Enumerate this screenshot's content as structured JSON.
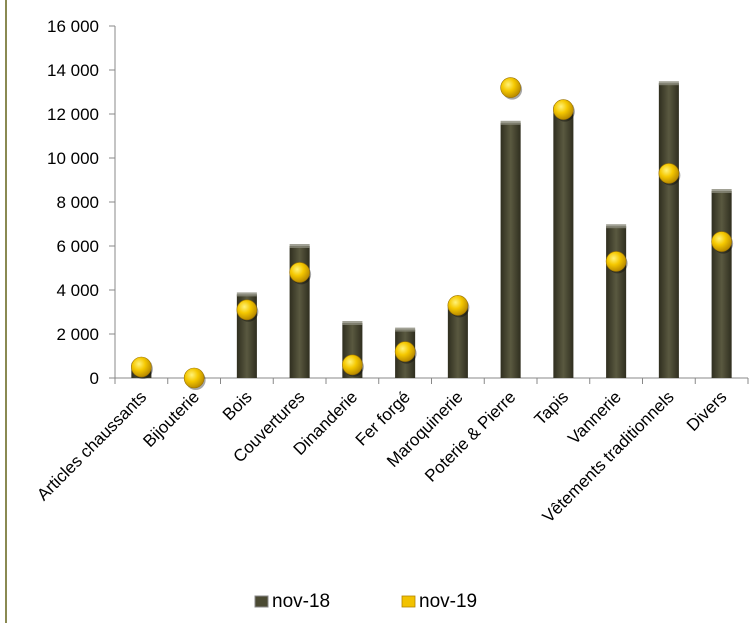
{
  "chart_data": {
    "type": "bar",
    "categories": [
      "Articles chaussants",
      "Bijouterie",
      "Bois",
      "Couvertures",
      "Dinanderie",
      "Fer forgé",
      "Maroquinerie",
      "Poterie & Pierre",
      "Tapis",
      "Vannerie",
      "Vêtements traditionnels",
      "Divers"
    ],
    "series": [
      {
        "name": "nov-18",
        "display": "bar",
        "color": "#4b4a33",
        "values": [
          600,
          50,
          3800,
          6000,
          2500,
          2200,
          3200,
          11600,
          12300,
          6900,
          13400,
          8500
        ]
      },
      {
        "name": "nov-19",
        "display": "marker",
        "color": "#f2c200",
        "values": [
          500,
          0,
          3100,
          4800,
          600,
          1200,
          3300,
          13200,
          12200,
          5300,
          9300,
          6200
        ]
      }
    ],
    "ylim": [
      0,
      16000
    ],
    "yticks": [
      "0",
      "2 000",
      "4 000",
      "6 000",
      "8 000",
      "10 000",
      "12 000",
      "14 000",
      "16 000"
    ],
    "legend_position": "bottom",
    "grid": false
  }
}
